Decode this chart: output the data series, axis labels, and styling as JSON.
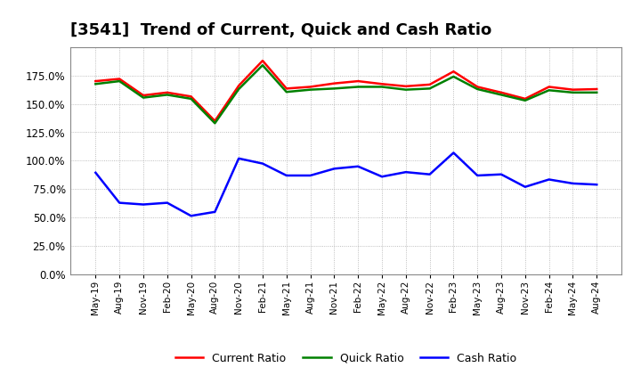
{
  "title": "[3541]  Trend of Current, Quick and Cash Ratio",
  "labels": [
    "May-19",
    "Aug-19",
    "Nov-19",
    "Feb-20",
    "May-20",
    "Aug-20",
    "Nov-20",
    "Feb-21",
    "May-21",
    "Aug-21",
    "Nov-21",
    "Feb-22",
    "May-22",
    "Aug-22",
    "Nov-22",
    "Feb-23",
    "May-23",
    "Aug-23",
    "Nov-23",
    "Feb-24",
    "May-24",
    "Aug-24"
  ],
  "current_ratio": [
    1.7,
    1.72,
    1.575,
    1.6,
    1.565,
    1.35,
    1.66,
    1.88,
    1.635,
    1.65,
    1.68,
    1.7,
    1.675,
    1.655,
    1.67,
    1.785,
    1.65,
    1.6,
    1.545,
    1.65,
    1.625,
    1.63
  ],
  "quick_ratio": [
    1.675,
    1.7,
    1.555,
    1.58,
    1.545,
    1.33,
    1.63,
    1.84,
    1.605,
    1.625,
    1.635,
    1.65,
    1.65,
    1.625,
    1.635,
    1.74,
    1.63,
    1.58,
    1.53,
    1.62,
    1.6,
    1.6
  ],
  "cash_ratio": [
    0.895,
    0.63,
    0.615,
    0.63,
    0.515,
    0.55,
    1.02,
    0.975,
    0.87,
    0.87,
    0.93,
    0.95,
    0.86,
    0.9,
    0.88,
    1.07,
    0.87,
    0.88,
    0.77,
    0.835,
    0.8,
    0.79
  ],
  "current_color": "#ff0000",
  "quick_color": "#008000",
  "cash_color": "#0000ff",
  "ylim_min": 0.0,
  "ylim_max": 2.0,
  "yticks": [
    0.0,
    0.25,
    0.5,
    0.75,
    1.0,
    1.25,
    1.5,
    1.75
  ],
  "bg_color": "#ffffff",
  "grid_color": "#aaaaaa",
  "line_width": 1.8,
  "title_fontsize": 13,
  "legend_fontsize": 9,
  "xtick_fontsize": 7.5,
  "ytick_fontsize": 8.5
}
